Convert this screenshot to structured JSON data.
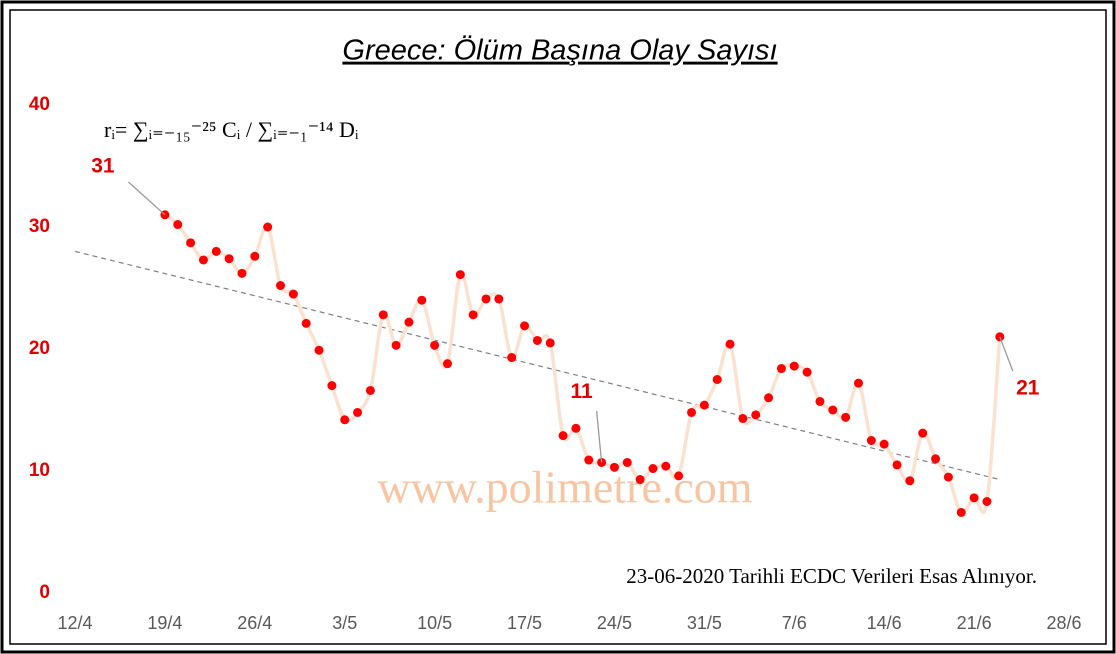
{
  "chart_data": {
    "type": "line",
    "title": "Greece: Ölüm Başına Olay Sayısı",
    "formula": "rᵢ= ∑ᵢ₌₋₁₅⁻²⁵ Cᵢ / ∑ᵢ₌₋₁⁻¹⁴ Dᵢ",
    "watermark": "www.polimetre.com",
    "note": "23-06-2020 Tarihli ECDC Verileri Esas Alınıyor.",
    "x": [
      "19/4",
      "20/4",
      "21/4",
      "22/4",
      "23/4",
      "24/4",
      "25/4",
      "26/4",
      "27/4",
      "28/4",
      "29/4",
      "30/4",
      "1/5",
      "2/5",
      "3/5",
      "4/5",
      "5/5",
      "6/5",
      "7/5",
      "8/5",
      "9/5",
      "10/5",
      "11/5",
      "12/5",
      "13/5",
      "14/5",
      "15/5",
      "16/5",
      "17/5",
      "18/5",
      "19/5",
      "20/5",
      "21/5",
      "22/5",
      "23/5",
      "24/5",
      "25/5",
      "26/5",
      "27/5",
      "28/5",
      "29/5",
      "30/5",
      "31/5",
      "1/6",
      "2/6",
      "3/6",
      "4/6",
      "5/6",
      "6/6",
      "7/6",
      "8/6",
      "9/6",
      "10/6",
      "11/6",
      "12/6",
      "13/6",
      "14/6",
      "15/6",
      "16/6",
      "17/6",
      "18/6",
      "19/6",
      "20/6",
      "21/6",
      "22/6",
      "23/6"
    ],
    "series": [
      {
        "name": "r",
        "color": "#ff0000",
        "line_color": "#fbe1d0",
        "values": [
          31.0,
          30.2,
          28.7,
          27.3,
          28.0,
          27.4,
          26.2,
          27.6,
          30.0,
          25.2,
          24.5,
          22.1,
          19.9,
          17.0,
          14.2,
          14.8,
          16.6,
          22.8,
          20.3,
          22.2,
          24.0,
          20.3,
          18.8,
          26.1,
          22.8,
          24.1,
          24.1,
          19.3,
          21.9,
          20.7,
          20.5,
          12.9,
          13.5,
          10.9,
          10.7,
          10.3,
          10.7,
          9.3,
          10.2,
          10.4,
          9.6,
          14.8,
          15.4,
          17.5,
          20.4,
          14.3,
          14.6,
          16.0,
          18.4,
          18.6,
          18.1,
          15.7,
          15.0,
          14.4,
          17.2,
          12.5,
          12.2,
          10.5,
          9.2,
          13.1,
          11.0,
          9.5,
          6.6,
          7.8,
          7.5,
          21.0
        ]
      }
    ],
    "trendline": {
      "x": [
        "12/4",
        "23/6"
      ],
      "values": [
        28.0,
        9.3
      ],
      "color": "#808080"
    },
    "annotations": [
      {
        "text": "31",
        "x": "19/4",
        "value": 31
      },
      {
        "text": "11",
        "x": "23/5",
        "value": 11
      },
      {
        "text": "21",
        "x": "23/6",
        "value": 21
      }
    ],
    "xlim": [
      "12/4",
      "28/6"
    ],
    "xticks": [
      "12/4",
      "19/4",
      "26/4",
      "3/5",
      "10/5",
      "17/5",
      "24/5",
      "31/5",
      "7/6",
      "14/6",
      "21/6",
      "28/6"
    ],
    "ylim": [
      0,
      40
    ],
    "yticks": [
      0,
      10,
      20,
      30,
      40
    ],
    "grid": false
  }
}
